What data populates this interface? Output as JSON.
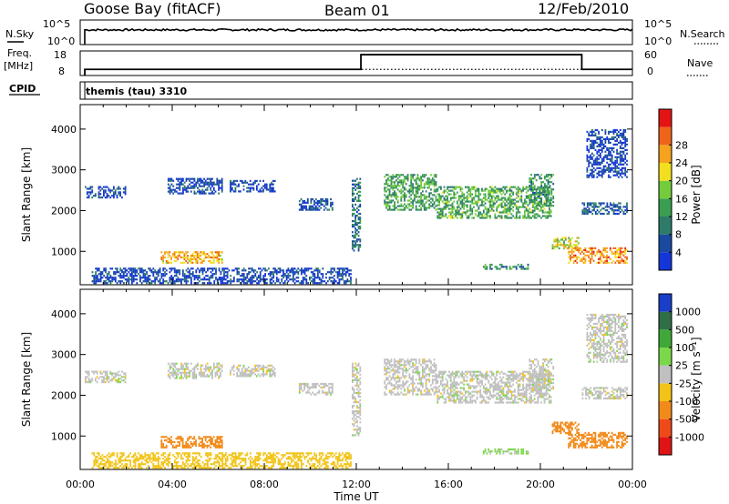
{
  "header": {
    "station": "Goose Bay (fitACF)",
    "beam": "Beam 01",
    "date": "12/Feb/2010"
  },
  "top_panels": {
    "nsky_label": "N.Sky",
    "nsky_ticks": [
      "10^5",
      "10^0"
    ],
    "nsearch_label": "N.Search",
    "nsearch_ticks": [
      "10^5",
      "10^0"
    ],
    "freq_label": "Freq.",
    "freq_unit": "[MHz]",
    "freq_ticks": [
      "18",
      "8"
    ],
    "nave_label": "Nave",
    "nave_ticks": [
      "60",
      "0"
    ],
    "cpid_label": "CPID",
    "cpid_value": "themis (tau) 3310"
  },
  "chart_data": [
    {
      "type": "heatmap",
      "title": "",
      "quantity": "Power",
      "xlabel": "Time UT",
      "ylabel": "Slant Range [km]",
      "x_ticks": [
        "00:00",
        "04:00",
        "08:00",
        "12:00",
        "16:00",
        "20:00",
        "00:00"
      ],
      "x_range_hours": [
        0,
        24
      ],
      "yticks": [
        1000,
        2000,
        3000,
        4000
      ],
      "ylim": [
        180,
        4600
      ],
      "colorbar": {
        "label": "Power [dB]",
        "ticks": [
          "4",
          "8",
          "12",
          "16",
          "20",
          "24",
          "28"
        ],
        "colors": [
          "#1436d8",
          "#1a4aa0",
          "#2e7b6a",
          "#3a9e52",
          "#74cc3c",
          "#f2e020",
          "#f5a21d",
          "#f0641a",
          "#e51414"
        ]
      },
      "echo_regions": [
        {
          "t0": 0.2,
          "t1": 2.0,
          "r0": 2300,
          "r1": 2600,
          "value": 6
        },
        {
          "t0": 3.8,
          "t1": 6.2,
          "r0": 2400,
          "r1": 2800,
          "value": 6
        },
        {
          "t0": 6.5,
          "t1": 8.5,
          "r0": 2450,
          "r1": 2750,
          "value": 6
        },
        {
          "t0": 9.5,
          "t1": 11.0,
          "r0": 2000,
          "r1": 2300,
          "value": 7
        },
        {
          "t0": 11.8,
          "t1": 12.2,
          "r0": 1000,
          "r1": 2800,
          "value": 10
        },
        {
          "t0": 13.2,
          "t1": 15.5,
          "r0": 2000,
          "r1": 2900,
          "value": 14
        },
        {
          "t0": 15.5,
          "t1": 20.5,
          "r0": 1800,
          "r1": 2600,
          "value": 15
        },
        {
          "t0": 19.5,
          "t1": 20.6,
          "r0": 2100,
          "r1": 2900,
          "value": 13
        },
        {
          "t0": 21.8,
          "t1": 23.8,
          "r0": 1900,
          "r1": 2200,
          "value": 8
        },
        {
          "t0": 22.0,
          "t1": 23.8,
          "r0": 2800,
          "r1": 4000,
          "value": 5
        },
        {
          "t0": 3.5,
          "t1": 6.2,
          "r0": 700,
          "r1": 1000,
          "value": 24
        },
        {
          "t0": 20.5,
          "t1": 21.7,
          "r0": 1050,
          "r1": 1350,
          "value": 20
        },
        {
          "t0": 21.2,
          "t1": 23.8,
          "r0": 700,
          "r1": 1100,
          "value": 26
        },
        {
          "t0": 0.5,
          "t1": 11.8,
          "r0": 200,
          "r1": 600,
          "value": 6
        },
        {
          "t0": 17.5,
          "t1": 19.5,
          "r0": 550,
          "r1": 700,
          "value": 12
        }
      ]
    },
    {
      "type": "heatmap",
      "title": "",
      "quantity": "Velocity",
      "xlabel": "Time UT",
      "ylabel": "Slant Range [km]",
      "x_ticks": [
        "00:00",
        "04:00",
        "08:00",
        "12:00",
        "16:00",
        "20:00",
        "00:00"
      ],
      "x_range_hours": [
        0,
        24
      ],
      "yticks": [
        1000,
        2000,
        3000,
        4000
      ],
      "ylim": [
        180,
        4600
      ],
      "colorbar": {
        "label": "Velocity [m s⁻¹]",
        "ticks": [
          "1000",
          "500",
          "100",
          "25",
          "-25",
          "-100",
          "-500",
          "-1000"
        ],
        "colors": [
          "#1a3ec8",
          "#2f6f48",
          "#40a838",
          "#7bd84a",
          "#c0c0c0",
          "#f2c418",
          "#f28a1a",
          "#ef4a1a",
          "#e01414"
        ]
      },
      "echo_regions": [
        {
          "t0": 0.2,
          "t1": 2.0,
          "r0": 2300,
          "r1": 2600,
          "value": 0
        },
        {
          "t0": 3.8,
          "t1": 6.2,
          "r0": 2400,
          "r1": 2800,
          "value": 0
        },
        {
          "t0": 6.5,
          "t1": 8.5,
          "r0": 2450,
          "r1": 2750,
          "value": 0
        },
        {
          "t0": 9.5,
          "t1": 11.0,
          "r0": 2000,
          "r1": 2300,
          "value": 0
        },
        {
          "t0": 11.8,
          "t1": 12.2,
          "r0": 1000,
          "r1": 2800,
          "value": 0
        },
        {
          "t0": 13.2,
          "t1": 15.5,
          "r0": 2000,
          "r1": 2900,
          "value": 0
        },
        {
          "t0": 15.5,
          "t1": 20.5,
          "r0": 1800,
          "r1": 2600,
          "value": 0
        },
        {
          "t0": 19.5,
          "t1": 20.6,
          "r0": 2100,
          "r1": 2900,
          "value": 0
        },
        {
          "t0": 21.8,
          "t1": 23.8,
          "r0": 1900,
          "r1": 2200,
          "value": 0
        },
        {
          "t0": 22.0,
          "t1": 23.8,
          "r0": 2800,
          "r1": 4000,
          "value": 0
        },
        {
          "t0": 3.5,
          "t1": 6.2,
          "r0": 700,
          "r1": 1000,
          "value": -150
        },
        {
          "t0": 20.5,
          "t1": 21.7,
          "r0": 1050,
          "r1": 1350,
          "value": -400
        },
        {
          "t0": 21.2,
          "t1": 23.8,
          "r0": 700,
          "r1": 1100,
          "value": -200
        },
        {
          "t0": 0.5,
          "t1": 11.8,
          "r0": 200,
          "r1": 600,
          "value": -60
        },
        {
          "t0": 17.5,
          "t1": 19.5,
          "r0": 550,
          "r1": 700,
          "value": 40
        }
      ]
    }
  ],
  "series_panels": {
    "frequency_steps": [
      {
        "t0": 0,
        "t1": 12.2,
        "value": 10.5
      },
      {
        "t0": 12.2,
        "t1": 21.8,
        "value": 16.5
      },
      {
        "t0": 21.8,
        "t1": 24,
        "value": 10.5
      }
    ],
    "frequency_start": 0.2,
    "nave_level": 15,
    "nsky_level": 0.6
  }
}
